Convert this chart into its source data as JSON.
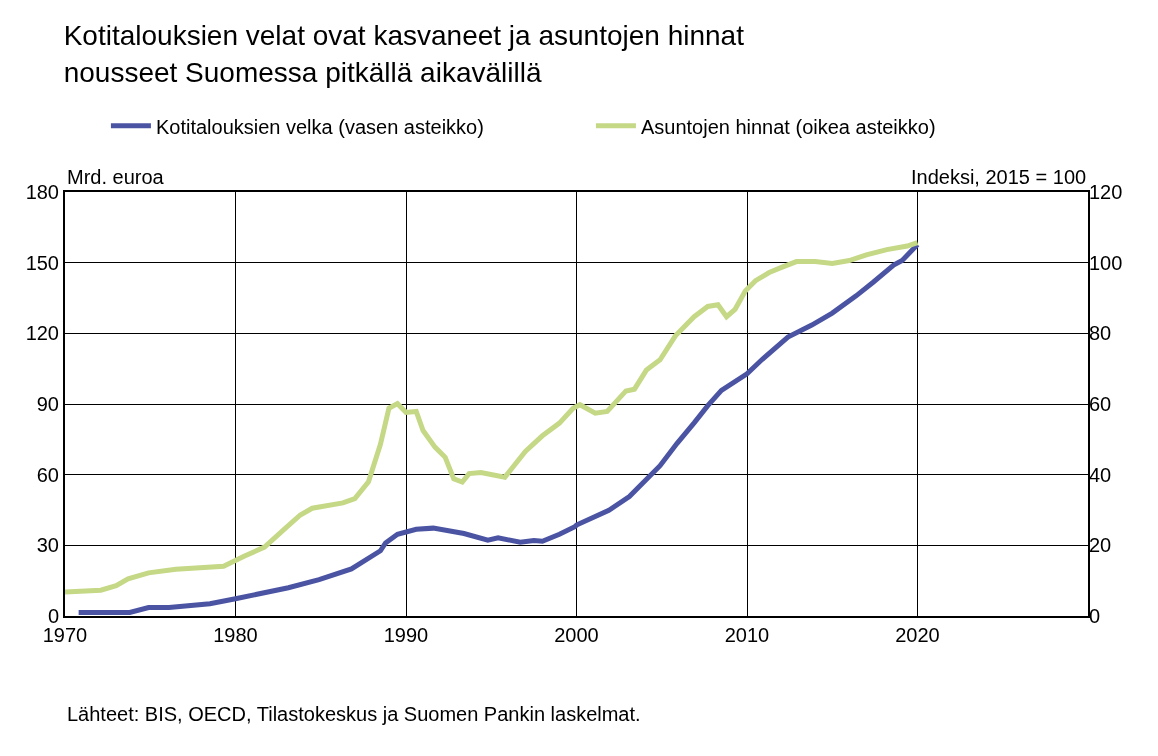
{
  "chart_data": {
    "type": "line",
    "title": "Kotitalouksien velat ovat kasvaneet ja asuntojen hinnat nousseet Suomessa pitkällä aikavälillä",
    "ylabel": "Mrd. euroa",
    "y2label": "Indeksi, 2015 = 100",
    "xlim": [
      1970,
      2030
    ],
    "xticks": [
      1970,
      1980,
      1990,
      2000,
      2010,
      2020
    ],
    "ylim": [
      0,
      180
    ],
    "yticks": [
      0,
      30,
      60,
      90,
      120,
      150,
      180
    ],
    "y2lim": [
      0,
      120
    ],
    "y2ticks": [
      0,
      20,
      40,
      60,
      80,
      100,
      120
    ],
    "grid": true,
    "legend": "top left",
    "marker": "none",
    "line_style": "solid",
    "series": [
      {
        "name": "Kotitalouksien velka (vasen asteikko)",
        "color": "#4b54a3",
        "x": [
          1970.8,
          1973.8,
          1974.9,
          1976.1,
          1978.5,
          1980,
          1983.1,
          1984.9,
          1986.8,
          1988.5,
          1988.8,
          1989.5,
          1990.6,
          1991.6,
          1993.4,
          1994.8,
          1995.4,
          1996.7,
          1997.5,
          1998,
          1999,
          1999.9,
          2000,
          2001.9,
          2003.1,
          2004.9,
          2005.9,
          2006.9,
          2007.7,
          2008.5,
          2010,
          2010.9,
          2012.4,
          2013.8,
          2015,
          2016.4,
          2017.4,
          2018.6,
          2019.1,
          2020
        ],
        "values": [
          1.5,
          1.5,
          3.6,
          3.6,
          5.2,
          7.3,
          12,
          15.4,
          20,
          27.7,
          31,
          34.7,
          36.8,
          37.3,
          35,
          32.2,
          33.2,
          31.3,
          32,
          31.7,
          34.7,
          37.9,
          38.6,
          44.9,
          50.7,
          63.8,
          73.3,
          82,
          89.3,
          95.8,
          102.8,
          109,
          118.4,
          123.5,
          128.6,
          135.9,
          141.7,
          149,
          150.9,
          157.7
        ]
      },
      {
        "name": "Asuntojen hinnat (oikea asteikko)",
        "color": "#c5d886",
        "axis": "y2",
        "x": [
          1970,
          1972.1,
          1973,
          1973.7,
          1974.9,
          1976.5,
          1979.3,
          1980.5,
          1981.7,
          1982.9,
          1983.8,
          1984.5,
          1986.3,
          1987,
          1987.8,
          1988.5,
          1989,
          1989.5,
          1990,
          1990.6,
          1991,
          1991.7,
          1992.3,
          1992.8,
          1993.3,
          1993.7,
          1994.4,
          1995.8,
          1997,
          1998,
          1999,
          1999.8,
          2000.2,
          2001.1,
          2001.8,
          2002.9,
          2003.4,
          2004.1,
          2004.9,
          2005.8,
          2006.9,
          2007.7,
          2008.3,
          2008.8,
          2009.3,
          2009.9,
          2010.5,
          2011.3,
          2012.1,
          2012.9,
          2014,
          2015,
          2016,
          2017,
          2018.2,
          2019.4,
          2020
        ],
        "values": [
          6.8,
          7.3,
          8.6,
          10.5,
          12.2,
          13.2,
          14.1,
          16.9,
          19.5,
          24.7,
          28.6,
          30.5,
          32,
          33.2,
          38,
          48.6,
          58.8,
          60.1,
          57.6,
          57.9,
          52.5,
          47.8,
          44.9,
          38.8,
          37.9,
          40.3,
          40.6,
          39.3,
          46.6,
          51,
          54.6,
          58.8,
          59.8,
          57.4,
          57.9,
          63.7,
          64.2,
          69.6,
          72.5,
          79.3,
          84.7,
          87.6,
          88.1,
          84.7,
          86.8,
          92,
          94.9,
          97.2,
          98.8,
          100.3,
          100.3,
          99.8,
          100.6,
          102.2,
          103.7,
          104.7,
          105.7
        ]
      }
    ],
    "annotations": [
      "Lähteet: BIS, OECD, Tilastokeskus ja Suomen Pankin laskelmat."
    ]
  }
}
